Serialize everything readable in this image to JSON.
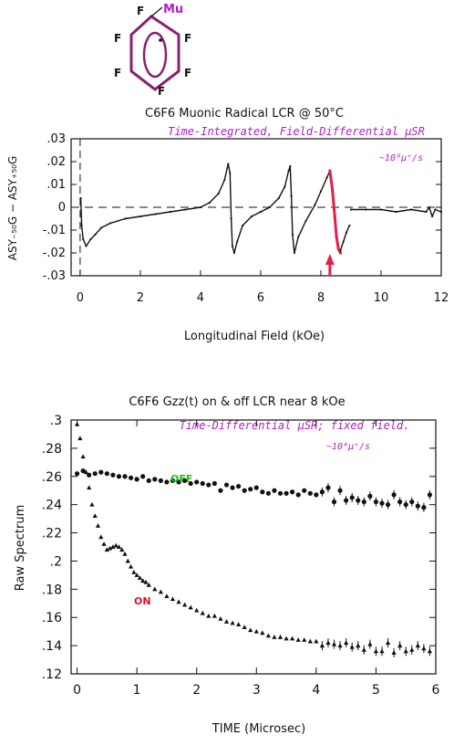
{
  "molecule": {
    "atoms": [
      "F",
      "F",
      "F",
      "F",
      "F",
      "F"
    ],
    "muon_label": "Mu"
  },
  "colors": {
    "ink": "#111111",
    "magenta": "#b020c0",
    "molecule_ring": "#8a2070",
    "arrow": "#e0204a",
    "off_label": "#22bb22",
    "on_label": "#dd1030"
  },
  "chart_data": [
    {
      "type": "line",
      "title": "C6F6 Muonic Radical LCR @ 50°C",
      "subtitle": "Time-Integrated, Field-Differential μSR",
      "rate_note": "~10⁶μ⁺/s",
      "xlabel": "Longitudinal Field (kOe)",
      "ylabel": "ASY₋₅₀G − ASY₊₅₀G",
      "xlim": [
        -0.3,
        12
      ],
      "ylim": [
        -0.03,
        0.03
      ],
      "xticks": [
        0,
        2,
        4,
        6,
        8,
        10,
        12
      ],
      "yticks": [
        0.03,
        0.02,
        0.01,
        0,
        -0.01,
        -0.02,
        -0.03
      ],
      "ytick_labels": [
        ".03",
        ".02",
        ".01",
        "0",
        "-.01",
        "-.02",
        "-.03"
      ],
      "zero_line": "dashed",
      "marker_vline_x": 0,
      "arrow_x": 8.3,
      "series": [
        {
          "x": [
            0.02,
            0.05,
            0.1,
            0.2,
            0.35,
            0.5,
            0.7,
            1.0,
            1.5,
            2.0,
            2.5,
            3.0,
            3.5,
            4.0,
            4.3,
            4.6,
            4.8,
            4.92,
            4.98,
            5.02,
            5.06,
            5.12,
            5.22,
            5.4,
            5.7,
            6.0,
            6.3,
            6.6,
            6.8,
            6.93,
            6.98,
            7.02,
            7.06,
            7.12,
            7.25,
            7.5,
            7.8,
            8.0,
            8.2,
            8.3
          ],
          "y": [
            0.004,
            -0.008,
            -0.014,
            -0.017,
            -0.014,
            -0.012,
            -0.009,
            -0.007,
            -0.005,
            -0.004,
            -0.003,
            -0.002,
            -0.001,
            0.0,
            0.002,
            0.006,
            0.012,
            0.019,
            0.015,
            -0.005,
            -0.017,
            -0.02,
            -0.015,
            -0.008,
            -0.004,
            -0.002,
            0.0,
            0.004,
            0.009,
            0.016,
            0.018,
            0.005,
            -0.012,
            -0.02,
            -0.013,
            -0.006,
            0.001,
            0.007,
            0.013,
            0.016
          ]
        },
        {
          "name": "highlighted",
          "x": [
            8.3,
            8.38,
            8.46,
            8.52,
            8.58,
            8.65
          ],
          "y": [
            0.016,
            0.008,
            -0.004,
            -0.013,
            -0.018,
            -0.02
          ]
        },
        {
          "x": [
            8.65,
            8.75,
            8.85,
            8.95
          ],
          "y": [
            -0.019,
            -0.015,
            -0.011,
            -0.008
          ]
        },
        {
          "x": [
            9.0,
            9.5,
            10.0,
            10.5,
            11.0,
            11.5,
            11.6,
            11.7,
            11.8,
            12.0
          ],
          "y": [
            -0.001,
            -0.001,
            -0.001,
            -0.002,
            -0.001,
            -0.002,
            0.0,
            -0.004,
            -0.001,
            -0.002
          ]
        }
      ]
    },
    {
      "type": "scatter",
      "title": "C6F6 Gzz(t) on & off LCR near 8 kOe",
      "subtitle": "Time-Differential μSR; fixed field.",
      "rate_note": "~10⁴μ⁺/s",
      "xlabel": "TIME (Microsec)",
      "ylabel": "Raw Spectrum",
      "xlim": [
        -0.1,
        6
      ],
      "ylim": [
        0.12,
        0.3
      ],
      "xticks": [
        0,
        1,
        2,
        3,
        4,
        5,
        6
      ],
      "yticks": [
        0.3,
        0.28,
        0.26,
        0.24,
        0.22,
        0.2,
        0.18,
        0.16,
        0.14,
        0.12
      ],
      "ytick_labels": [
        ".3",
        ".28",
        ".26",
        ".24",
        ".22",
        ".2",
        ".18",
        ".16",
        ".14",
        ".12"
      ],
      "series": [
        {
          "name": "OFF",
          "marker": "circle",
          "x": [
            0.0,
            0.1,
            0.2,
            0.3,
            0.4,
            0.5,
            0.6,
            0.7,
            0.8,
            0.9,
            1.0,
            1.1,
            1.2,
            1.3,
            1.4,
            1.5,
            1.6,
            1.7,
            1.8,
            1.9,
            2.0,
            2.1,
            2.2,
            2.3,
            2.4,
            2.5,
            2.6,
            2.7,
            2.8,
            2.9,
            3.0,
            3.1,
            3.2,
            3.3,
            3.4,
            3.5,
            3.6,
            3.7,
            3.8,
            3.9,
            4.0,
            4.1,
            4.2,
            4.3,
            4.4,
            4.5,
            4.6,
            4.7,
            4.8,
            4.9,
            5.0,
            5.1,
            5.2,
            5.3,
            5.4,
            5.5,
            5.6,
            5.7,
            5.8,
            5.9
          ],
          "y": [
            0.262,
            0.264,
            0.261,
            0.262,
            0.263,
            0.262,
            0.261,
            0.26,
            0.26,
            0.259,
            0.258,
            0.26,
            0.257,
            0.258,
            0.257,
            0.256,
            0.257,
            0.256,
            0.257,
            0.255,
            0.256,
            0.255,
            0.254,
            0.255,
            0.25,
            0.254,
            0.252,
            0.253,
            0.25,
            0.251,
            0.252,
            0.249,
            0.248,
            0.25,
            0.248,
            0.248,
            0.249,
            0.247,
            0.25,
            0.248,
            0.247,
            0.249,
            0.252,
            0.242,
            0.25,
            0.243,
            0.245,
            0.243,
            0.242,
            0.246,
            0.242,
            0.241,
            0.24,
            0.247,
            0.242,
            0.24,
            0.242,
            0.239,
            0.238,
            0.247
          ]
        },
        {
          "name": "ON",
          "marker": "triangle",
          "x": [
            0.0,
            0.05,
            0.1,
            0.15,
            0.2,
            0.25,
            0.3,
            0.35,
            0.4,
            0.45,
            0.5,
            0.55,
            0.6,
            0.65,
            0.7,
            0.75,
            0.8,
            0.85,
            0.9,
            0.95,
            1.0,
            1.05,
            1.1,
            1.15,
            1.2,
            1.3,
            1.4,
            1.5,
            1.6,
            1.7,
            1.8,
            1.9,
            2.0,
            2.1,
            2.2,
            2.3,
            2.4,
            2.5,
            2.6,
            2.7,
            2.8,
            2.9,
            3.0,
            3.1,
            3.2,
            3.3,
            3.4,
            3.5,
            3.6,
            3.7,
            3.8,
            3.9,
            4.0,
            4.1,
            4.2,
            4.3,
            4.4,
            4.5,
            4.6,
            4.7,
            4.8,
            4.9,
            5.0,
            5.1,
            5.2,
            5.3,
            5.4,
            5.5,
            5.6,
            5.7,
            5.8,
            5.9
          ],
          "y": [
            0.297,
            0.287,
            0.274,
            0.263,
            0.252,
            0.24,
            0.232,
            0.225,
            0.217,
            0.212,
            0.208,
            0.209,
            0.21,
            0.211,
            0.21,
            0.208,
            0.205,
            0.2,
            0.196,
            0.192,
            0.19,
            0.188,
            0.186,
            0.185,
            0.183,
            0.18,
            0.178,
            0.175,
            0.173,
            0.171,
            0.169,
            0.167,
            0.165,
            0.163,
            0.161,
            0.161,
            0.159,
            0.157,
            0.156,
            0.155,
            0.153,
            0.151,
            0.15,
            0.149,
            0.147,
            0.146,
            0.146,
            0.145,
            0.145,
            0.144,
            0.144,
            0.143,
            0.143,
            0.14,
            0.142,
            0.141,
            0.14,
            0.142,
            0.139,
            0.14,
            0.137,
            0.141,
            0.136,
            0.136,
            0.142,
            0.135,
            0.14,
            0.136,
            0.137,
            0.14,
            0.138,
            0.136
          ]
        }
      ],
      "series_labels": [
        {
          "text": "OFF",
          "series": "OFF"
        },
        {
          "text": "ON",
          "series": "ON"
        }
      ]
    }
  ]
}
